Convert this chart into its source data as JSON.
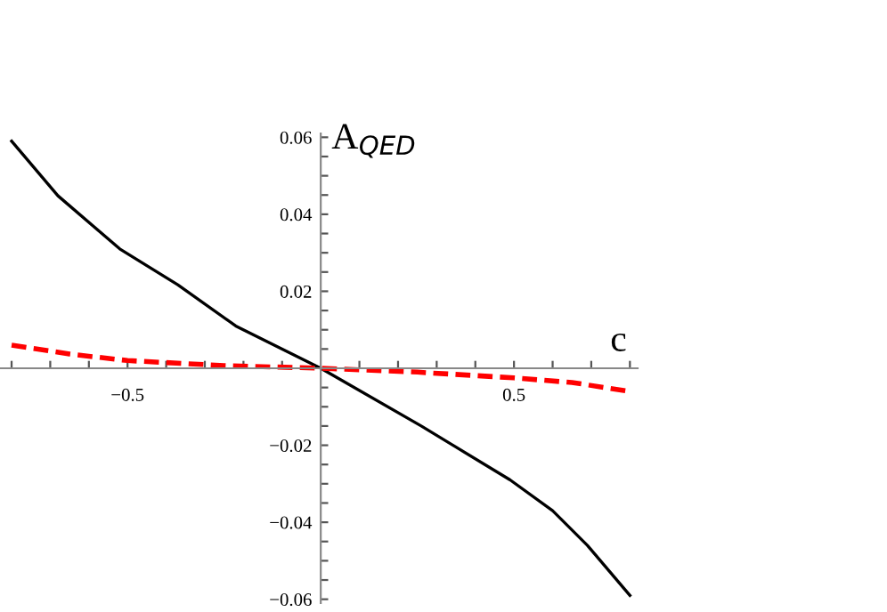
{
  "chart_data": {
    "type": "line",
    "xlabel": "c",
    "ylabel": "A$_{QED}$",
    "xlim": [
      -0.83,
      0.82
    ],
    "ylim": [
      -0.061,
      0.061
    ],
    "xticks": [
      {
        "value": -0.8,
        "label": null
      },
      {
        "value": -0.7,
        "label": null
      },
      {
        "value": -0.6,
        "label": null
      },
      {
        "value": -0.5,
        "label": "−0.5"
      },
      {
        "value": -0.4,
        "label": null
      },
      {
        "value": -0.3,
        "label": null
      },
      {
        "value": -0.2,
        "label": null
      },
      {
        "value": -0.1,
        "label": null
      },
      {
        "value": 0.1,
        "label": null
      },
      {
        "value": 0.2,
        "label": null
      },
      {
        "value": 0.3,
        "label": null
      },
      {
        "value": 0.4,
        "label": null
      },
      {
        "value": 0.5,
        "label": "0.5"
      },
      {
        "value": 0.6,
        "label": null
      },
      {
        "value": 0.7,
        "label": null
      },
      {
        "value": 0.8,
        "label": null
      }
    ],
    "yticks": [
      {
        "value": -0.06,
        "label": "−0.06"
      },
      {
        "value": -0.055,
        "label": null
      },
      {
        "value": -0.05,
        "label": null
      },
      {
        "value": -0.045,
        "label": null
      },
      {
        "value": -0.04,
        "label": "−0.04"
      },
      {
        "value": -0.035,
        "label": null
      },
      {
        "value": -0.03,
        "label": null
      },
      {
        "value": -0.025,
        "label": null
      },
      {
        "value": -0.02,
        "label": "−0.02"
      },
      {
        "value": -0.015,
        "label": null
      },
      {
        "value": -0.01,
        "label": null
      },
      {
        "value": -0.005,
        "label": null
      },
      {
        "value": 0.005,
        "label": null
      },
      {
        "value": 0.01,
        "label": null
      },
      {
        "value": 0.015,
        "label": null
      },
      {
        "value": 0.02,
        "label": "0.02"
      },
      {
        "value": 0.025,
        "label": null
      },
      {
        "value": 0.03,
        "label": null
      },
      {
        "value": 0.035,
        "label": null
      },
      {
        "value": 0.04,
        "label": "0.04"
      },
      {
        "value": 0.045,
        "label": null
      },
      {
        "value": 0.05,
        "label": null
      },
      {
        "value": 0.055,
        "label": null
      },
      {
        "value": 0.06,
        "label": "0.06"
      }
    ],
    "grid": false,
    "legend": false,
    "marker": "none",
    "series": [
      {
        "color": "#000000",
        "line_style": "solid",
        "x": [
          -0.8,
          -0.68,
          -0.52,
          -0.37,
          -0.22,
          0,
          0.26,
          0.49,
          0.6,
          0.69,
          0.8
        ],
        "values": [
          0.059,
          0.0448,
          0.031,
          0.0217,
          0.011,
          0,
          -0.015,
          -0.029,
          -0.037,
          -0.046,
          -0.059
        ]
      },
      {
        "color": "#ff0000",
        "line_style": "dashed",
        "x": [
          -0.8,
          -0.65,
          -0.5,
          -0.25,
          0,
          0.25,
          0.5,
          0.65,
          0.8
        ],
        "values": [
          0.006,
          0.0037,
          0.002,
          0.0007,
          0,
          -0.001,
          -0.0025,
          -0.0037,
          -0.006
        ]
      }
    ]
  }
}
